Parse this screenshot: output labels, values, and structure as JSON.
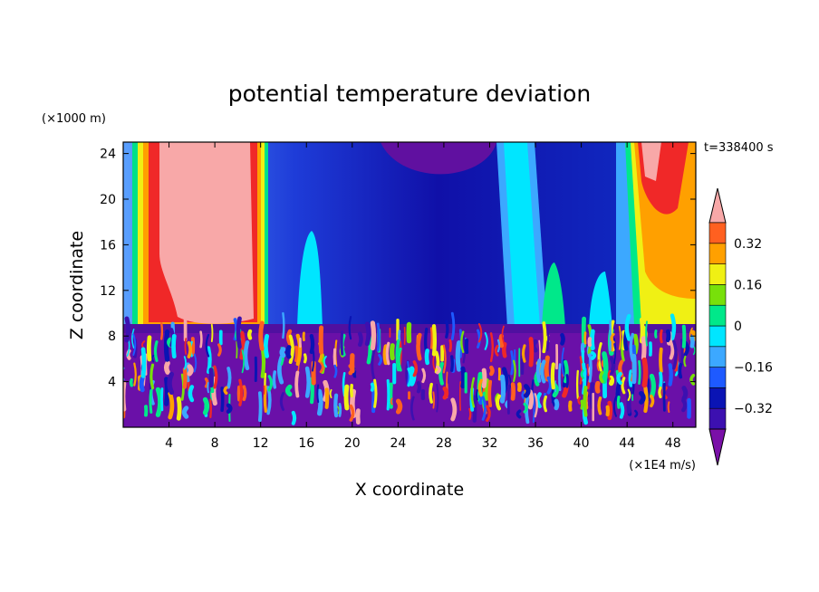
{
  "chart_data": {
    "type": "heatmap",
    "title": "potential temperature deviation",
    "xlabel": "X coordinate",
    "ylabel": "Z coordinate",
    "x_unit": "(×1E4 m/s)",
    "y_unit": "(×1000 m)",
    "time_label": "t=338400 s",
    "xlim": [
      0,
      50
    ],
    "ylim": [
      0,
      25
    ],
    "x_ticks": [
      "4",
      "8",
      "12",
      "16",
      "20",
      "24",
      "28",
      "32",
      "36",
      "40",
      "44",
      "48"
    ],
    "y_ticks": [
      "4",
      "8",
      "12",
      "16",
      "20",
      "24"
    ],
    "colorbar": {
      "levels": [
        -0.4,
        -0.32,
        -0.24,
        -0.16,
        -0.08,
        0,
        0.08,
        0.16,
        0.24,
        0.32,
        0.4
      ],
      "tick_labels": [
        "0.32",
        "0.16",
        "0",
        "−0.16",
        "−0.32"
      ],
      "colors": [
        "#7a10a8",
        "#3c10b0",
        "#0a14b4",
        "#1e5aff",
        "#3ca8ff",
        "#00e6ff",
        "#00e88a",
        "#78e00a",
        "#f0f014",
        "#ffa000",
        "#ff6020",
        "#f02828",
        "#f8a8a8"
      ]
    },
    "grid": false,
    "legend": "colorbar-right"
  }
}
